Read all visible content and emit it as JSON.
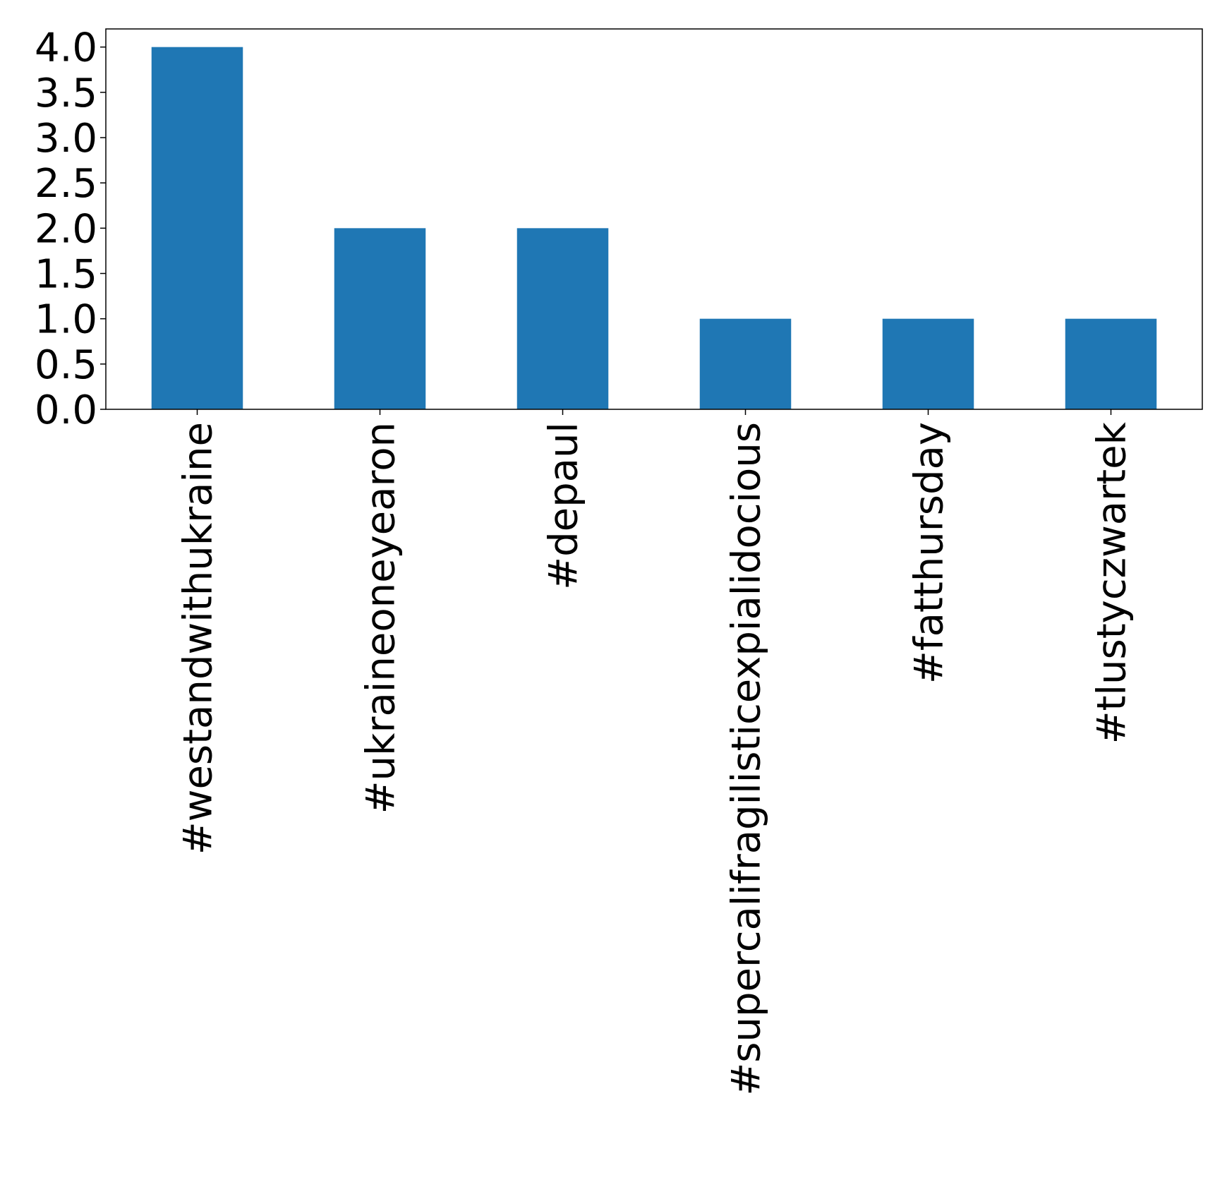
{
  "chart_data": {
    "type": "bar",
    "title": "",
    "xlabel": "",
    "ylabel": "",
    "categories": [
      "#westandwithukraine",
      "#ukraineoneyearon",
      "#depaul",
      "#supercalifragilisticexpialidocious",
      "#fatthursday",
      "#tlustyczwartek"
    ],
    "values": [
      4,
      2,
      2,
      1,
      1,
      1
    ],
    "ylim": [
      0,
      4.2
    ],
    "yticks": [
      "0.0",
      "0.5",
      "1.0",
      "1.5",
      "2.0",
      "2.5",
      "3.0",
      "3.5",
      "4.0"
    ],
    "bar_color": "#1f77b4",
    "grid": false,
    "legend": "none"
  }
}
